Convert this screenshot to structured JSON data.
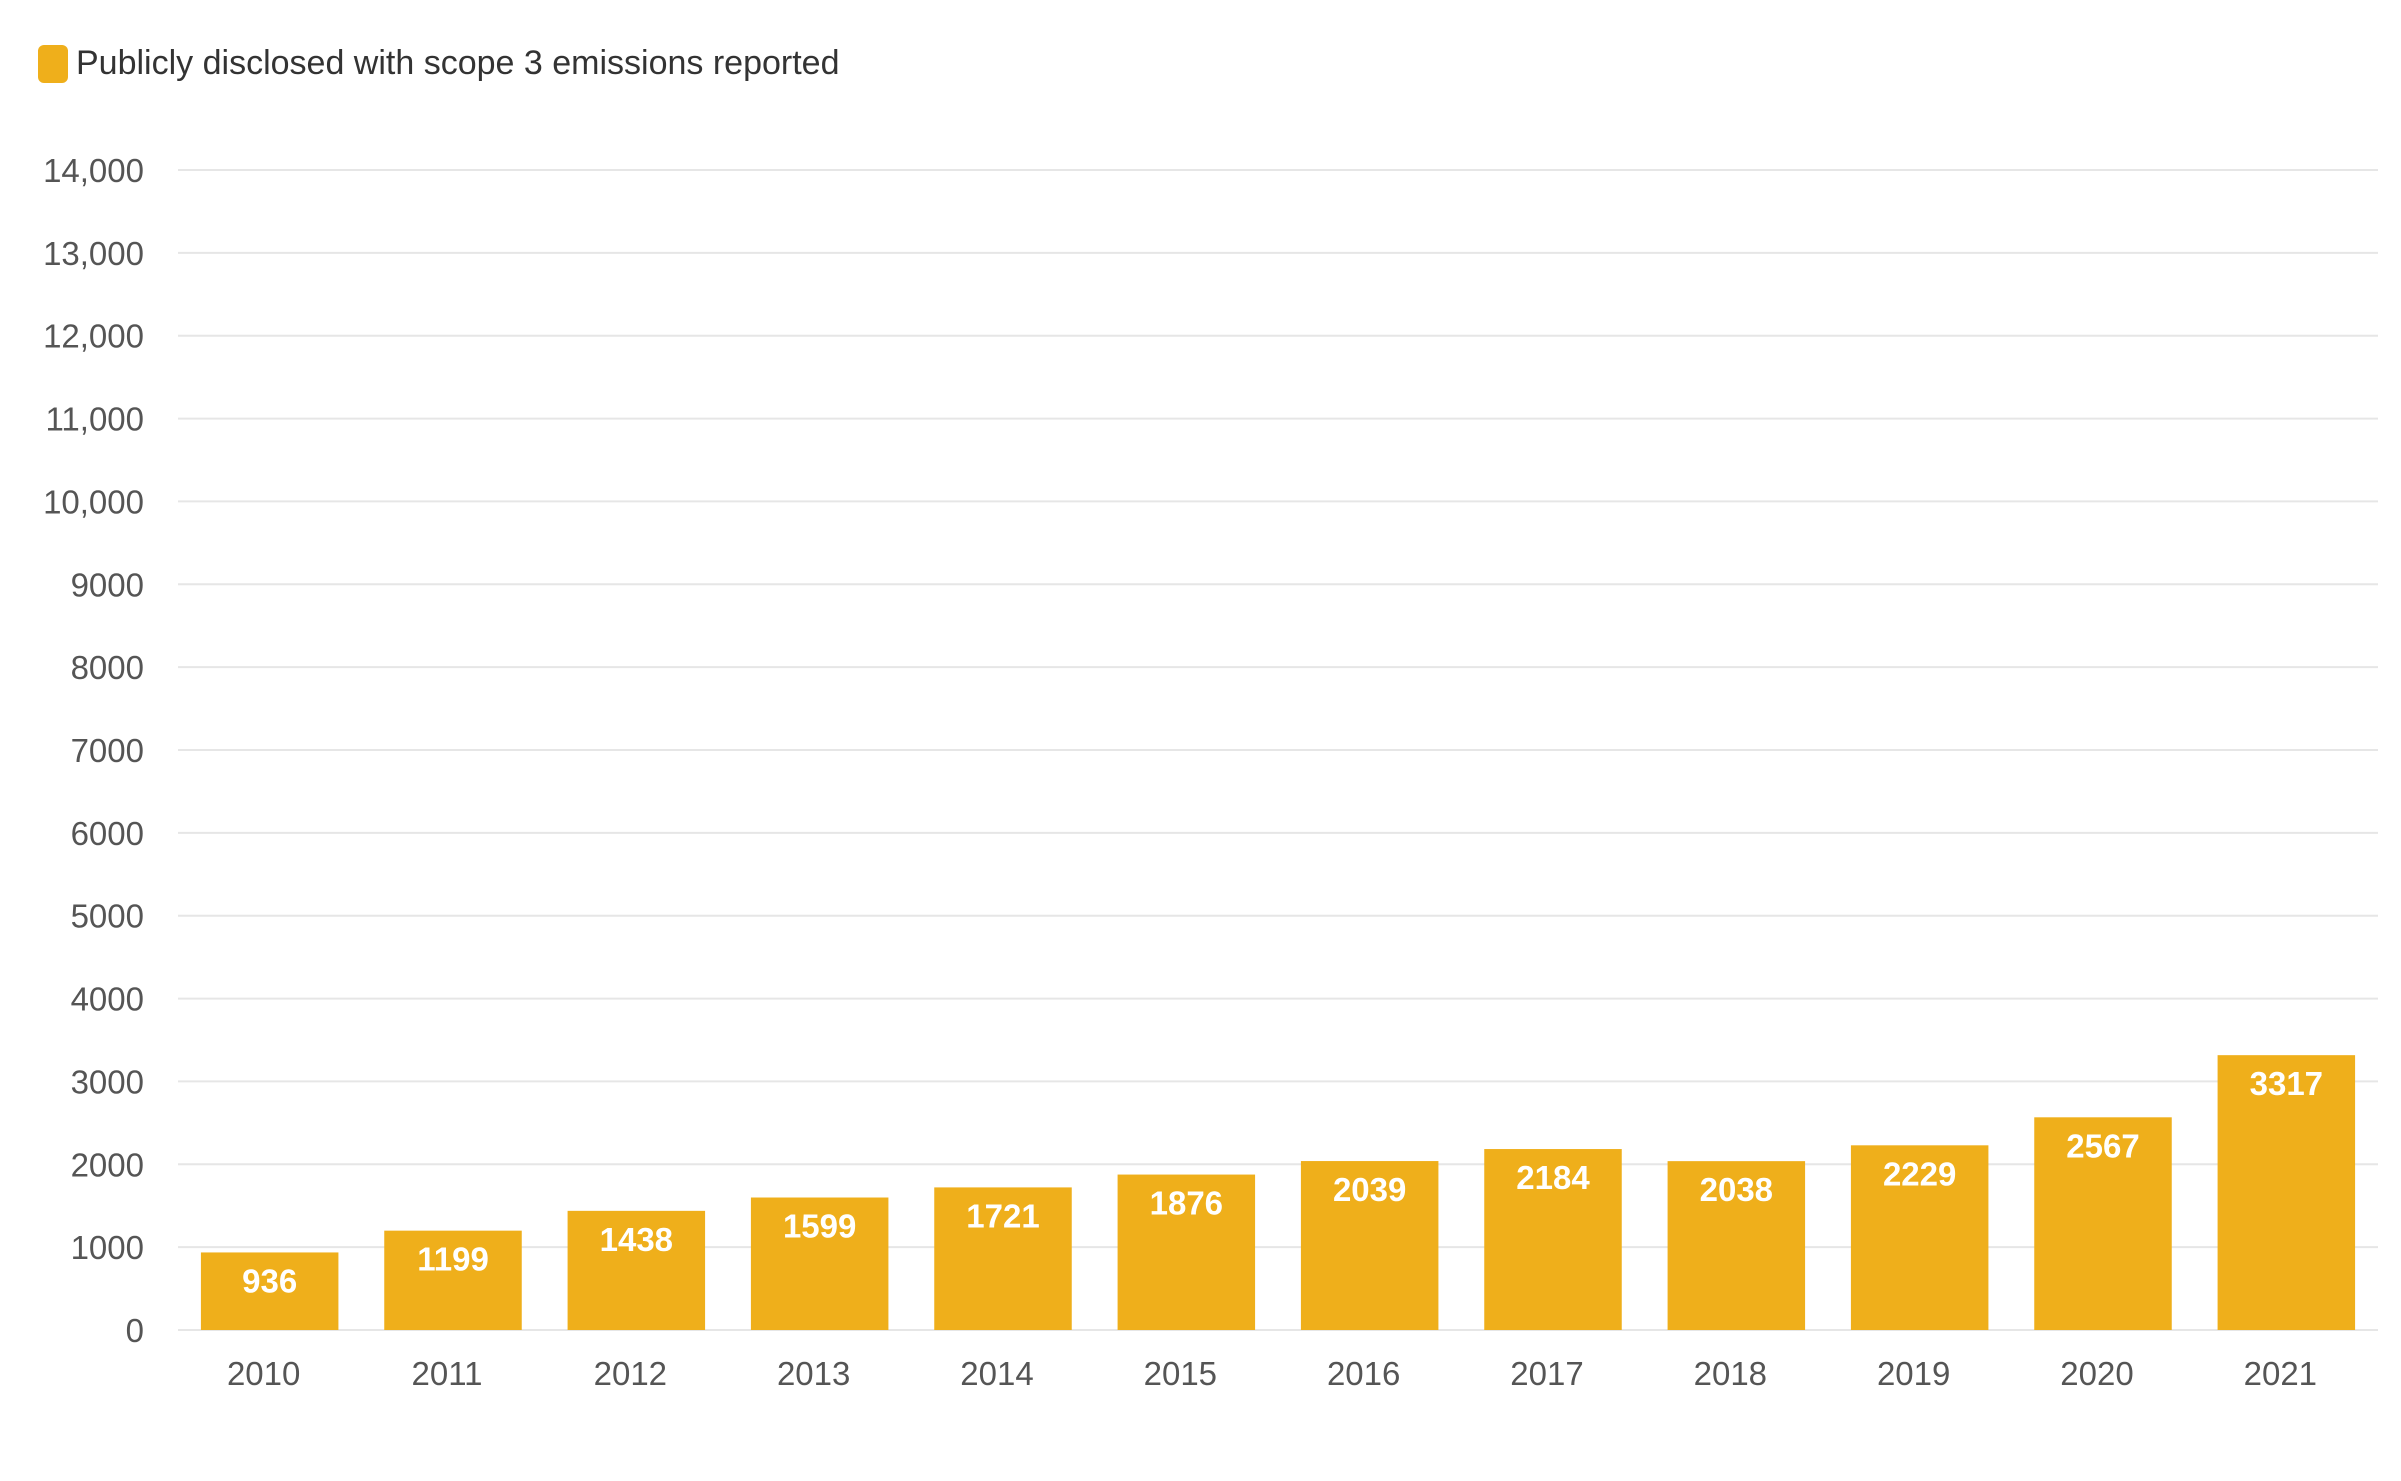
{
  "legend": {
    "label": "Publicly disclosed with scope 3 emissions reported",
    "color": "#efaf1b"
  },
  "chart_data": {
    "type": "bar",
    "categories": [
      "2010",
      "2011",
      "2012",
      "2013",
      "2014",
      "2015",
      "2016",
      "2017",
      "2018",
      "2019",
      "2020",
      "2021"
    ],
    "series": [
      {
        "name": "Publicly disclosed with scope 3 emissions reported",
        "values": [
          936,
          1199,
          1438,
          1599,
          1721,
          1876,
          2039,
          2184,
          2038,
          2229,
          2567,
          3317
        ]
      }
    ],
    "yticks": [
      "0",
      "1000",
      "2000",
      "3000",
      "4000",
      "5000",
      "6000",
      "7000",
      "8000",
      "9000",
      "10,000",
      "11,000",
      "12,000",
      "13,000",
      "14,000"
    ],
    "ylim": [
      0,
      14000
    ],
    "grid": true,
    "legend_position": "top-left",
    "bar_color": "#efaf1b",
    "title": "",
    "xlabel": "",
    "ylabel": ""
  }
}
